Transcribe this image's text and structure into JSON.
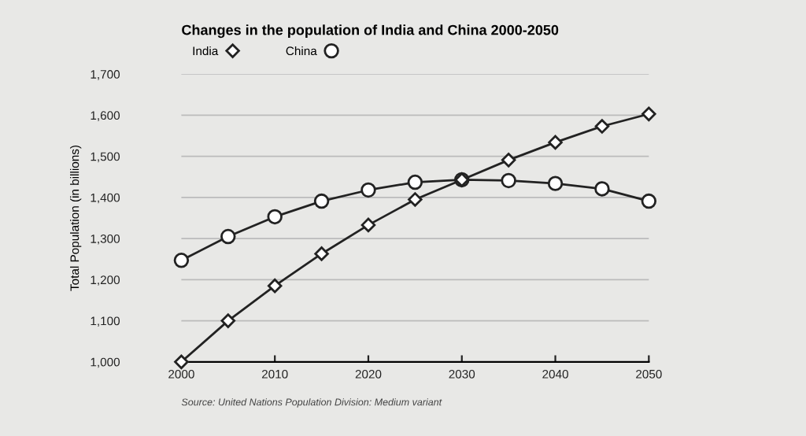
{
  "chart_data": {
    "type": "line",
    "title": "Changes in the population of India and China 2000-2050",
    "ylabel": "Total Population (in billions)",
    "x": [
      2000,
      2005,
      2010,
      2015,
      2020,
      2025,
      2030,
      2035,
      2040,
      2045,
      2050
    ],
    "series": [
      {
        "name": "India",
        "color": "#222222",
        "marker": "diamond",
        "values": [
          1000,
          1100,
          1185,
          1263,
          1333,
          1395,
          1443,
          1491,
          1534,
          1573,
          1603
        ]
      },
      {
        "name": "China",
        "color": "#222222",
        "marker": "circle",
        "values": [
          1247,
          1305,
          1353,
          1391,
          1418,
          1437,
          1443,
          1441,
          1434,
          1421,
          1391
        ]
      }
    ],
    "xlim": [
      2000,
      2050
    ],
    "xticks": [
      2000,
      2010,
      2020,
      2030,
      2040,
      2050
    ],
    "ylim": [
      1000,
      1700
    ],
    "yticks": [
      {
        "value": 1000,
        "label": "1,000"
      },
      {
        "value": 1100,
        "label": "1,100"
      },
      {
        "value": 1200,
        "label": "1,200"
      },
      {
        "value": 1300,
        "label": "1,300"
      },
      {
        "value": 1400,
        "label": "1,400"
      },
      {
        "value": 1500,
        "label": "1,500"
      },
      {
        "value": 1600,
        "label": "1,600"
      },
      {
        "value": 1700,
        "label": "1,700"
      }
    ],
    "grid": "y",
    "legend": "top left",
    "line_style": "solid",
    "annotations": [
      "Source: United Nations Population Division: Medium variant"
    ]
  }
}
